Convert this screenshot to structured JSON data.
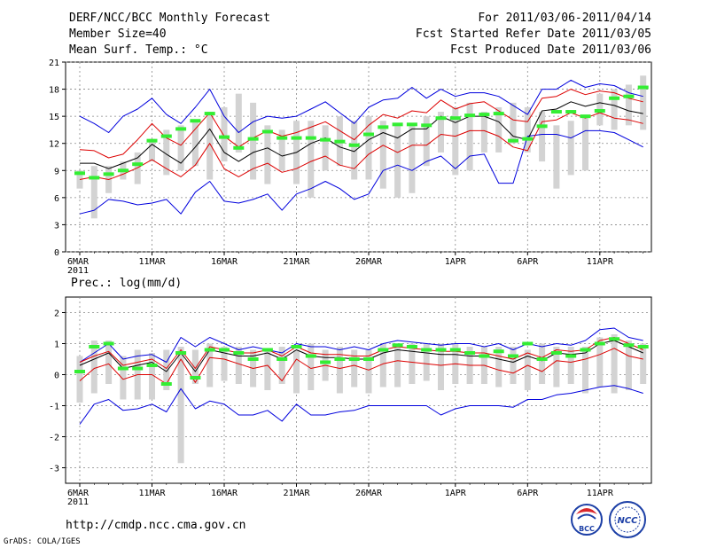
{
  "header": {
    "title": "DERF/NCC/BCC Monthly Forecast",
    "member_size": "Member Size=40",
    "variable1": "Mean Surf. Temp.: °C",
    "for_range": "For 2011/03/06-2011/04/14",
    "started": "Fcst Started Refer Date 2011/03/05",
    "produced": "Fcst Produced Date 2011/03/06"
  },
  "footer": {
    "url": "http://cmdp.ncc.cma.gov.cn",
    "credit": "GrADS: COLA/IGES",
    "logo_bcc": "BCC",
    "logo_ncc": "NCC"
  },
  "colors": {
    "bar": "#d3d3d3",
    "green": "#33ee33",
    "black": "#000000",
    "red": "#dd0000",
    "blue": "#0000dd",
    "grid": "#888888"
  },
  "chart_data": [
    {
      "type": "line",
      "title": "Mean Surf. Temp.: °C",
      "x_start_label": "6MAR",
      "x_year_label": "2011",
      "x_tick_labels": [
        "6MAR",
        "11MAR",
        "16MAR",
        "21MAR",
        "26MAR",
        "1APR",
        "6APR",
        "11APR"
      ],
      "x_tick_days": [
        0,
        5,
        10,
        15,
        20,
        26,
        31,
        36
      ],
      "ylim": [
        0,
        21
      ],
      "yticks": [
        0,
        3,
        6,
        9,
        12,
        15,
        18,
        21
      ],
      "days": 40,
      "series": {
        "bar_low": [
          7.0,
          3.7,
          6.5,
          8.0,
          7.5,
          10.0,
          8.5,
          9.0,
          9.5,
          8.0,
          10.0,
          11.0,
          8.0,
          7.5,
          9.0,
          7.5,
          6.0,
          9.0,
          9.5,
          8.0,
          8.0,
          7.0,
          6.0,
          6.5,
          9.5,
          11.0,
          8.5,
          9.0,
          11.0,
          11.0,
          12.0,
          11.0,
          10.0,
          7.0,
          8.5,
          9.0,
          14.0,
          13.5,
          14.0,
          13.5
        ],
        "bar_high": [
          9.0,
          9.5,
          9.5,
          10.0,
          11.0,
          12.5,
          13.5,
          14.0,
          14.5,
          15.5,
          16.0,
          17.5,
          16.5,
          14.0,
          13.5,
          14.5,
          14.5,
          14.0,
          15.0,
          14.5,
          15.0,
          14.5,
          14.0,
          14.0,
          15.0,
          15.5,
          16.0,
          16.5,
          15.5,
          16.0,
          16.5,
          16.0,
          15.5,
          14.0,
          14.5,
          15.0,
          17.5,
          18.0,
          18.5,
          19.5
        ],
        "green": [
          8.7,
          8.2,
          8.6,
          9.0,
          9.7,
          12.3,
          12.8,
          13.6,
          14.5,
          15.3,
          12.7,
          11.5,
          12.5,
          13.3,
          12.6,
          12.6,
          12.6,
          12.4,
          12.2,
          11.8,
          13.0,
          13.8,
          14.1,
          14.1,
          14.0,
          14.8,
          14.8,
          15.1,
          15.2,
          15.3,
          12.3,
          12.5,
          13.9,
          15.5,
          15.5,
          15.0,
          15.6,
          17.0,
          17.2,
          18.2
        ],
        "black": [
          9.8,
          9.8,
          9.2,
          9.8,
          10.4,
          11.9,
          10.8,
          9.8,
          11.6,
          13.6,
          11.0,
          10.0,
          11.0,
          11.5,
          10.6,
          11.0,
          12.0,
          12.6,
          11.6,
          11.1,
          12.4,
          13.2,
          12.6,
          13.6,
          13.6,
          15.0,
          14.3,
          15.0,
          15.0,
          14.4,
          12.8,
          12.4,
          15.6,
          15.8,
          16.6,
          16.1,
          16.5,
          16.2,
          15.6,
          15.3
        ],
        "red_high": [
          11.3,
          11.2,
          10.4,
          10.8,
          12.4,
          14.2,
          12.6,
          11.8,
          13.6,
          15.4,
          12.8,
          11.6,
          12.6,
          13.4,
          12.8,
          13.2,
          13.8,
          14.4,
          13.4,
          12.4,
          14.0,
          15.2,
          14.8,
          15.6,
          15.4,
          16.8,
          15.8,
          16.4,
          16.6,
          15.6,
          14.6,
          14.4,
          17.0,
          17.2,
          18.0,
          17.4,
          17.8,
          17.6,
          17.0,
          16.6
        ],
        "red_low": [
          8.0,
          8.3,
          8.0,
          8.6,
          9.3,
          10.2,
          9.2,
          8.3,
          9.6,
          12.0,
          9.2,
          8.3,
          9.2,
          9.8,
          8.8,
          9.2,
          10.0,
          10.6,
          9.6,
          9.2,
          10.8,
          11.8,
          11.0,
          11.8,
          11.8,
          13.0,
          12.8,
          13.4,
          13.4,
          12.8,
          11.6,
          11.2,
          14.4,
          14.6,
          15.4,
          14.8,
          15.4,
          14.8,
          14.6,
          14.2
        ],
        "blue_high": [
          15.0,
          14.2,
          13.2,
          15.0,
          15.8,
          17.0,
          15.2,
          14.2,
          16.0,
          18.0,
          15.0,
          13.2,
          14.4,
          15.0,
          14.8,
          15.0,
          15.8,
          16.6,
          15.4,
          14.2,
          16.0,
          16.8,
          17.0,
          18.2,
          17.0,
          18.0,
          17.2,
          17.6,
          17.6,
          17.2,
          16.2,
          15.2,
          18.0,
          18.0,
          19.0,
          18.2,
          18.6,
          18.4,
          17.6,
          17.2
        ],
        "blue_low": [
          4.2,
          4.6,
          5.8,
          5.6,
          5.2,
          5.4,
          5.8,
          4.2,
          6.6,
          7.8,
          5.6,
          5.4,
          5.8,
          6.4,
          4.6,
          6.4,
          7.0,
          7.8,
          7.0,
          5.8,
          6.4,
          9.0,
          9.6,
          9.0,
          10.0,
          10.6,
          9.2,
          10.6,
          10.8,
          7.6,
          7.6,
          12.8,
          13.0,
          13.0,
          12.6,
          13.4,
          13.4,
          13.2,
          12.4,
          11.6
        ]
      }
    },
    {
      "type": "line",
      "title": "Prec.: log(mm/d)",
      "x_start_label": "6MAR",
      "x_year_label": "2011",
      "x_tick_labels": [
        "6MAR",
        "11MAR",
        "16MAR",
        "21MAR",
        "26MAR",
        "1APR",
        "6APR",
        "11APR"
      ],
      "x_tick_days": [
        0,
        5,
        10,
        15,
        20,
        26,
        31,
        36
      ],
      "ylim": [
        -3.5,
        2.5
      ],
      "yticks": [
        -3,
        -2,
        -1,
        0,
        1,
        2
      ],
      "days": 40,
      "series": {
        "bar_low": [
          -0.9,
          -0.6,
          -0.3,
          -0.8,
          -0.8,
          -0.8,
          -0.5,
          -2.85,
          -0.3,
          -0.4,
          -0.2,
          -0.3,
          -0.4,
          -0.5,
          -0.3,
          -0.6,
          -0.5,
          -0.2,
          -0.6,
          -0.4,
          -0.6,
          -0.4,
          -0.4,
          -0.3,
          -0.2,
          -0.5,
          -0.3,
          -0.3,
          -0.3,
          -0.4,
          -0.3,
          -0.5,
          -0.3,
          -0.4,
          -0.3,
          -0.6,
          -0.4,
          -0.6,
          -0.5,
          -0.3
        ],
        "bar_high": [
          0.6,
          1.1,
          1.1,
          0.6,
          0.8,
          0.7,
          0.8,
          0.9,
          0.8,
          1.0,
          0.9,
          0.9,
          0.8,
          0.8,
          0.9,
          0.8,
          1.0,
          0.8,
          0.9,
          0.8,
          0.8,
          1.0,
          1.0,
          1.0,
          1.0,
          1.0,
          1.0,
          0.9,
          0.9,
          0.9,
          0.9,
          0.8,
          1.0,
          0.9,
          0.9,
          0.9,
          1.2,
          1.3,
          1.1,
          1.0
        ],
        "green": [
          0.1,
          0.9,
          1.0,
          0.2,
          0.2,
          0.3,
          -0.3,
          0.7,
          -0.1,
          0.8,
          0.8,
          0.7,
          0.5,
          0.8,
          0.5,
          0.9,
          0.6,
          0.4,
          0.5,
          0.5,
          0.5,
          0.8,
          0.95,
          0.9,
          0.8,
          0.8,
          0.8,
          0.7,
          0.6,
          0.75,
          0.6,
          1.0,
          0.5,
          0.7,
          0.6,
          0.8,
          1.0,
          1.15,
          0.95,
          0.9
        ],
        "black": [
          0.3,
          0.5,
          0.7,
          0.2,
          0.3,
          0.4,
          0.1,
          0.7,
          0.1,
          0.8,
          0.7,
          0.6,
          0.6,
          0.7,
          0.5,
          0.8,
          0.6,
          0.55,
          0.55,
          0.5,
          0.5,
          0.7,
          0.8,
          0.75,
          0.7,
          0.65,
          0.65,
          0.6,
          0.6,
          0.5,
          0.4,
          0.6,
          0.45,
          0.7,
          0.65,
          0.7,
          1.0,
          1.1,
          0.9,
          0.7
        ],
        "red_high": [
          0.4,
          0.6,
          0.75,
          0.3,
          0.4,
          0.5,
          0.2,
          0.8,
          0.2,
          0.9,
          0.8,
          0.7,
          0.7,
          0.8,
          0.6,
          0.9,
          0.7,
          0.65,
          0.65,
          0.6,
          0.6,
          0.8,
          0.9,
          0.85,
          0.8,
          0.75,
          0.75,
          0.7,
          0.7,
          0.6,
          0.5,
          0.7,
          0.55,
          0.8,
          0.75,
          0.8,
          1.1,
          1.2,
          1.0,
          0.8
        ],
        "red_low": [
          -0.2,
          0.2,
          0.35,
          -0.15,
          0.0,
          0.0,
          -0.3,
          0.5,
          -0.25,
          0.55,
          0.5,
          0.35,
          0.2,
          0.3,
          -0.2,
          0.5,
          0.2,
          0.3,
          0.2,
          0.3,
          0.15,
          0.35,
          0.45,
          0.4,
          0.35,
          0.3,
          0.35,
          0.3,
          0.3,
          0.15,
          0.05,
          0.3,
          0.1,
          0.45,
          0.4,
          0.5,
          0.65,
          0.85,
          0.6,
          0.5
        ],
        "blue_high": [
          0.4,
          0.7,
          1.0,
          0.5,
          0.6,
          0.65,
          0.4,
          1.2,
          0.9,
          1.2,
          1.0,
          0.8,
          0.9,
          0.8,
          0.7,
          1.0,
          0.9,
          0.9,
          0.8,
          0.9,
          0.8,
          1.0,
          1.1,
          1.05,
          1.0,
          0.95,
          1.0,
          1.0,
          0.9,
          1.0,
          0.8,
          1.0,
          0.9,
          1.0,
          0.95,
          1.1,
          1.45,
          1.5,
          1.2,
          1.1
        ],
        "blue_low": [
          -1.6,
          -0.95,
          -0.8,
          -1.15,
          -1.1,
          -0.95,
          -1.2,
          -0.45,
          -1.1,
          -0.85,
          -0.95,
          -1.3,
          -1.3,
          -1.15,
          -1.5,
          -0.95,
          -1.3,
          -1.3,
          -1.2,
          -1.15,
          -1.0,
          -1.0,
          -1.0,
          -1.0,
          -1.0,
          -1.3,
          -1.1,
          -1.0,
          -1.0,
          -1.0,
          -1.05,
          -0.8,
          -0.8,
          -0.65,
          -0.6,
          -0.5,
          -0.4,
          -0.35,
          -0.45,
          -0.6
        ]
      }
    }
  ]
}
